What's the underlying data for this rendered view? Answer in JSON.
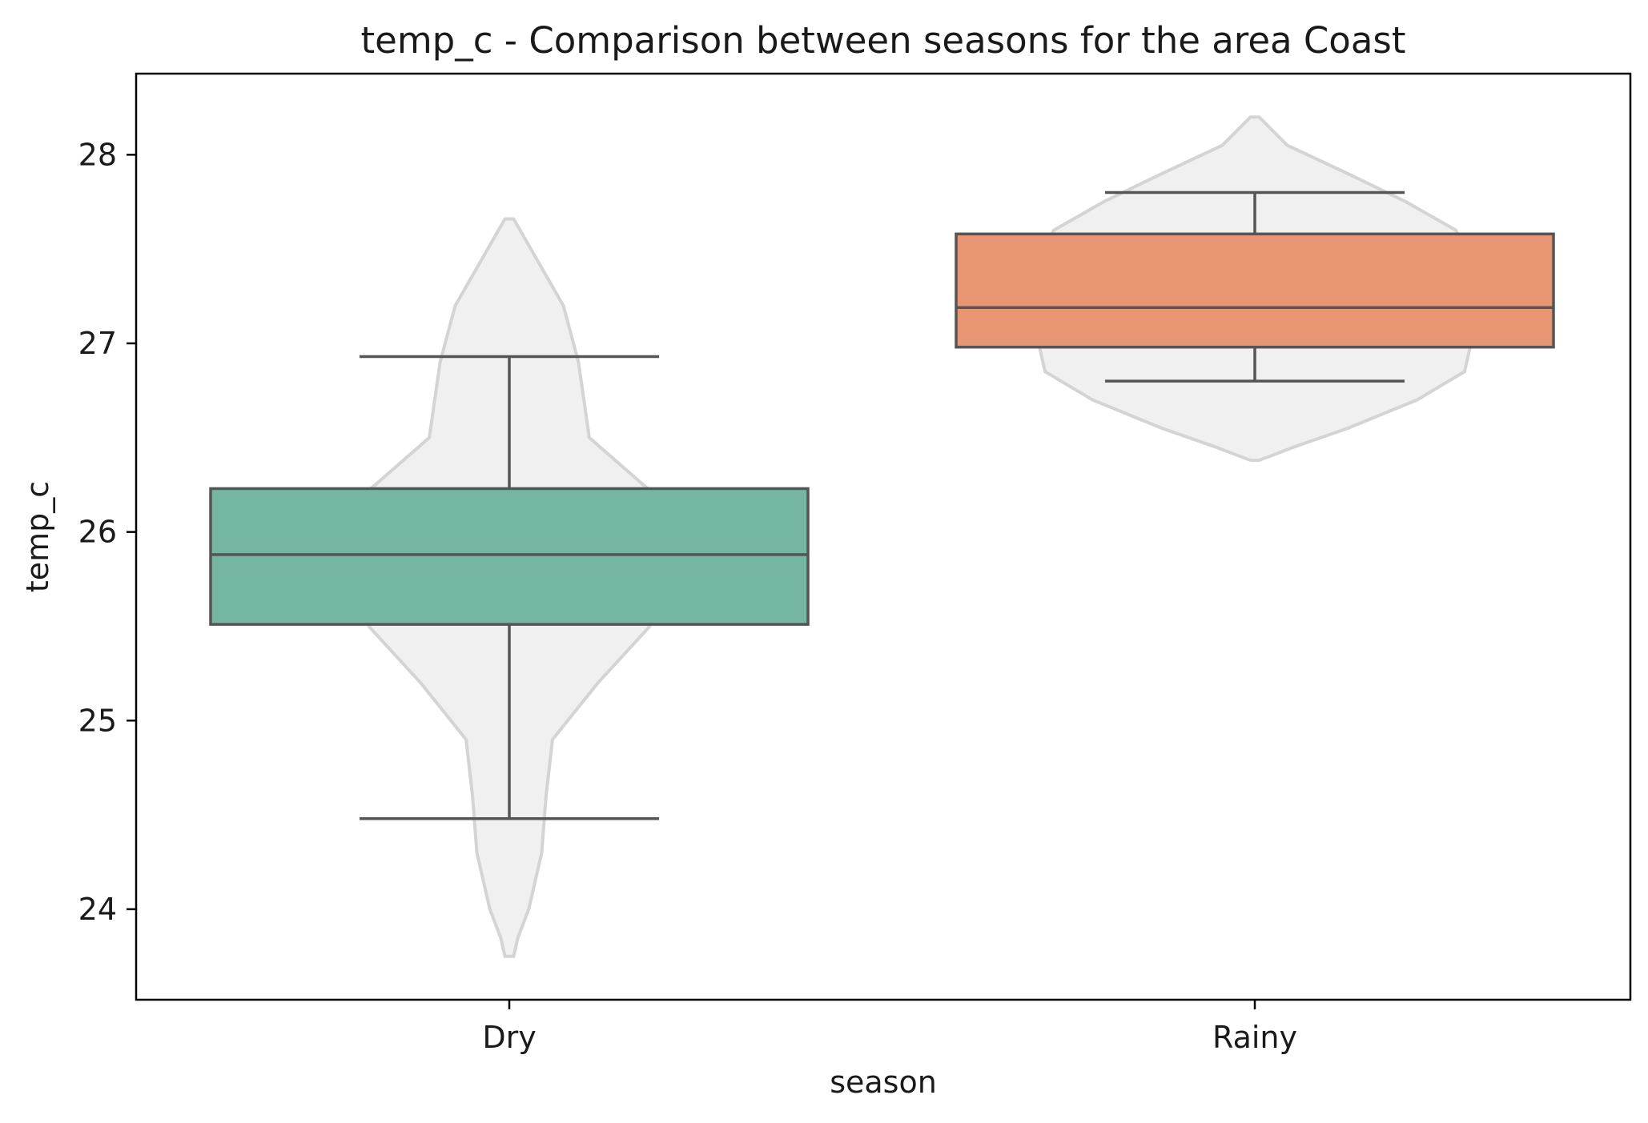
{
  "chart_data": {
    "type": "box",
    "title": "temp_c - Comparison between seasons for the area Coast",
    "xlabel": "season",
    "ylabel": "temp_c",
    "categories": [
      "Dry",
      "Rainy"
    ],
    "ylim": [
      23.52,
      28.43
    ],
    "yticks": [
      24,
      25,
      26,
      27,
      28
    ],
    "grid": false,
    "series": [
      {
        "name": "Dry",
        "color": "#74b6a2",
        "box": {
          "whisker_low": 24.48,
          "q1": 25.51,
          "median": 25.88,
          "q3": 26.23,
          "whisker_high": 26.93
        },
        "violin": {
          "y": [
            23.75,
            23.85,
            24.0,
            24.3,
            24.6,
            24.9,
            25.2,
            25.5,
            25.9,
            26.2,
            26.5,
            26.9,
            27.2,
            27.5,
            27.66
          ],
          "width": [
            0.02,
            0.04,
            0.09,
            0.15,
            0.17,
            0.2,
            0.41,
            0.65,
            0.76,
            0.67,
            0.37,
            0.32,
            0.25,
            0.1,
            0.02
          ]
        }
      },
      {
        "name": "Rainy",
        "color": "#e89574",
        "box": {
          "whisker_low": 26.8,
          "q1": 26.98,
          "median": 27.19,
          "q3": 27.58,
          "whisker_high": 27.8
        },
        "violin": {
          "y": [
            26.38,
            26.45,
            26.55,
            26.7,
            26.85,
            27.0,
            27.2,
            27.45,
            27.6,
            27.75,
            27.9,
            28.05,
            28.2
          ],
          "width": [
            0.02,
            0.18,
            0.43,
            0.75,
            0.97,
            1.0,
            1.0,
            0.99,
            0.93,
            0.7,
            0.43,
            0.15,
            0.02
          ]
        }
      }
    ]
  }
}
